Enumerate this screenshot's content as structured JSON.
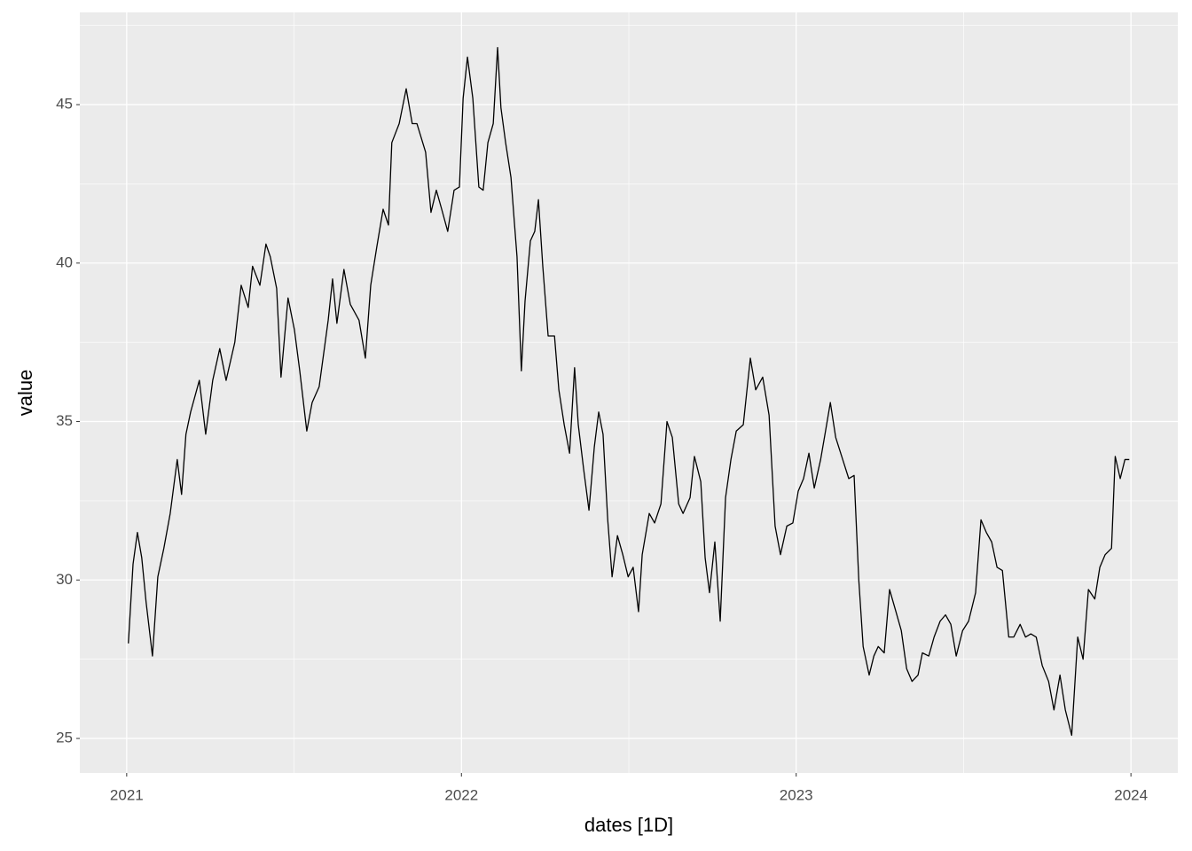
{
  "chart_data": {
    "type": "line",
    "x_label": "dates [1D]",
    "y_label": "value",
    "color": "#000000",
    "background": "#ebebeb",
    "grid": true,
    "xlim": [
      2020.86,
      2024.14
    ],
    "xticks": [
      2021,
      2022,
      2023,
      2024
    ],
    "x_minor_grid": [
      2021.5,
      2022.5,
      2023.5
    ],
    "ylim": [
      23.91,
      47.91
    ],
    "yticks": [
      25,
      30,
      35,
      40,
      45
    ],
    "y_minor_grid": [
      27.5,
      32.5,
      37.5,
      42.5,
      47.5
    ],
    "x": [
      2021.005,
      2021.019,
      2021.032,
      2021.045,
      2021.058,
      2021.077,
      2021.093,
      2021.111,
      2021.13,
      2021.151,
      2021.164,
      2021.177,
      2021.191,
      2021.217,
      2021.236,
      2021.257,
      2021.278,
      2021.297,
      2021.323,
      2021.342,
      2021.363,
      2021.376,
      2021.398,
      2021.416,
      2021.429,
      2021.448,
      2021.461,
      2021.482,
      2021.501,
      2021.517,
      2021.538,
      2021.554,
      2021.575,
      2021.602,
      2021.615,
      2021.628,
      2021.649,
      2021.668,
      2021.694,
      2021.713,
      2021.729,
      2021.747,
      2021.766,
      2021.782,
      2021.792,
      2021.814,
      2021.835,
      2021.853,
      2021.867,
      2021.893,
      2021.909,
      2021.925,
      2021.941,
      2021.959,
      2021.978,
      2021.994,
      2022.005,
      2022.018,
      2022.034,
      2022.052,
      2022.065,
      2022.079,
      2022.095,
      2022.108,
      2022.118,
      2022.132,
      2022.148,
      2022.158,
      2022.166,
      2022.179,
      2022.19,
      2022.206,
      2022.219,
      2022.23,
      2022.243,
      2022.259,
      2022.278,
      2022.291,
      2022.307,
      2022.323,
      2022.338,
      2022.349,
      2022.365,
      2022.381,
      2022.397,
      2022.41,
      2022.423,
      2022.437,
      2022.45,
      2022.466,
      2022.482,
      2022.498,
      2022.513,
      2022.529,
      2022.54,
      2022.561,
      2022.577,
      2022.596,
      2022.614,
      2022.63,
      2022.649,
      2022.662,
      2022.683,
      2022.696,
      2022.715,
      2022.728,
      2022.741,
      2022.757,
      2022.773,
      2022.789,
      2022.805,
      2022.821,
      2022.842,
      2022.863,
      2022.879,
      2022.9,
      2022.919,
      2022.937,
      2022.953,
      2022.972,
      2022.99,
      2023.006,
      2023.022,
      2023.038,
      2023.054,
      2023.073,
      2023.086,
      2023.102,
      2023.118,
      2023.139,
      2023.157,
      2023.173,
      2023.187,
      2023.2,
      2023.218,
      2023.232,
      2023.245,
      2023.263,
      2023.279,
      2023.298,
      2023.314,
      2023.33,
      2023.346,
      2023.364,
      2023.377,
      2023.396,
      2023.412,
      2023.43,
      2023.446,
      2023.462,
      2023.478,
      2023.497,
      2023.515,
      2023.536,
      2023.552,
      2023.568,
      2023.584,
      2023.6,
      2023.616,
      2023.635,
      2023.65,
      2023.669,
      2023.685,
      2023.701,
      2023.717,
      2023.735,
      2023.754,
      2023.77,
      2023.788,
      2023.804,
      2023.823,
      2023.841,
      2023.857,
      2023.873,
      2023.892,
      2023.907,
      2023.923,
      2023.942,
      2023.953,
      2023.968,
      2023.982,
      2023.995
    ],
    "values": [
      28.0,
      30.5,
      31.5,
      30.7,
      29.3,
      27.6,
      30.1,
      31.0,
      32.1,
      33.8,
      32.7,
      34.6,
      35.3,
      36.3,
      34.6,
      36.3,
      37.3,
      36.3,
      37.5,
      39.3,
      38.6,
      39.9,
      39.3,
      40.6,
      40.2,
      39.2,
      36.4,
      38.9,
      37.9,
      36.6,
      34.7,
      35.6,
      36.1,
      38.2,
      39.5,
      38.1,
      39.8,
      38.7,
      38.2,
      37.0,
      39.3,
      40.5,
      41.7,
      41.2,
      43.8,
      44.4,
      45.5,
      44.4,
      44.4,
      43.5,
      41.6,
      42.3,
      41.7,
      41.0,
      42.3,
      42.4,
      45.2,
      46.5,
      45.2,
      42.4,
      42.3,
      43.8,
      44.4,
      46.8,
      44.9,
      43.8,
      42.7,
      41.3,
      40.2,
      36.6,
      38.8,
      40.7,
      41.0,
      42.0,
      39.9,
      37.7,
      37.7,
      36.0,
      34.9,
      34.0,
      36.7,
      34.9,
      33.5,
      32.2,
      34.2,
      35.3,
      34.6,
      31.9,
      30.1,
      31.4,
      30.8,
      30.1,
      30.4,
      29.0,
      30.8,
      32.1,
      31.8,
      32.4,
      35.0,
      34.5,
      32.4,
      32.1,
      32.6,
      33.9,
      33.1,
      30.7,
      29.6,
      31.2,
      28.7,
      32.6,
      33.8,
      34.7,
      34.9,
      37.0,
      36.0,
      36.4,
      35.2,
      31.7,
      30.8,
      31.7,
      31.8,
      32.8,
      33.2,
      34.0,
      32.9,
      33.8,
      34.6,
      35.6,
      34.5,
      33.8,
      33.2,
      33.3,
      30.0,
      27.9,
      27.0,
      27.6,
      27.9,
      27.7,
      29.7,
      29.0,
      28.4,
      27.2,
      26.8,
      27.0,
      27.7,
      27.6,
      28.2,
      28.7,
      28.9,
      28.6,
      27.6,
      28.4,
      28.7,
      29.6,
      31.9,
      31.5,
      31.2,
      30.4,
      30.3,
      28.2,
      28.2,
      28.6,
      28.2,
      28.3,
      28.2,
      27.3,
      26.8,
      25.9,
      27.0,
      25.9,
      25.1,
      28.2,
      27.5,
      29.7,
      29.4,
      30.4,
      30.8,
      31.0,
      33.9,
      33.2,
      33.8,
      33.8
    ]
  }
}
